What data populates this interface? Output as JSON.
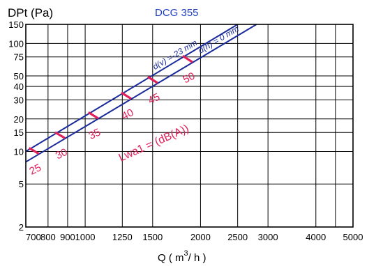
{
  "chart_data": {
    "type": "line",
    "title": "DCG 355",
    "ylabel": "DPt (Pa)",
    "xlabel": {
      "prefix": "Q ( m",
      "sup": "3",
      "suffix": "/ h )"
    },
    "x_scale": "log",
    "y_scale": "log",
    "xlim": [
      700,
      5000
    ],
    "ylim": [
      2,
      150
    ],
    "x_ticks": [
      700,
      800,
      900,
      1000,
      1250,
      1500,
      2000,
      2500,
      3000,
      4000,
      5000
    ],
    "x_tick_labels": [
      "700",
      "800",
      "900",
      "1000",
      "1250",
      "1500",
      "2000",
      "2500",
      "3000",
      "4000",
      "5000"
    ],
    "x_gridlines": [
      700,
      800,
      900,
      1000,
      1250,
      1500,
      2000,
      2500,
      3000,
      4000,
      4500
    ],
    "y_ticks": [
      2,
      5,
      10,
      15,
      20,
      30,
      40,
      50,
      75,
      100,
      150
    ],
    "y_tick_labels": [
      "2",
      "5",
      "10",
      "15",
      "20",
      "30",
      "40",
      "50",
      "75",
      "100",
      "150"
    ],
    "grid": true,
    "series": [
      {
        "name": "d(v) =-23 mm",
        "x": [
          700,
          2500
        ],
        "y": [
          10,
          150
        ]
      },
      {
        "name": "d(h) = 0 mm",
        "x": [
          700,
          2800
        ],
        "y": [
          8,
          150
        ]
      }
    ],
    "noise_lines": {
      "label": "Lwa1 = (dB(A))",
      "points": [
        {
          "label": "25",
          "x": 735
        },
        {
          "label": "30",
          "x": 860
        },
        {
          "label": "35",
          "x": 1050
        },
        {
          "label": "40",
          "x": 1280
        },
        {
          "label": "45",
          "x": 1500
        },
        {
          "label": "50",
          "x": 1850
        }
      ]
    },
    "colors": {
      "series": "#1a2a9a",
      "noise": "#e0205a",
      "title": "#1f3fbf",
      "grid": "#000000"
    }
  }
}
